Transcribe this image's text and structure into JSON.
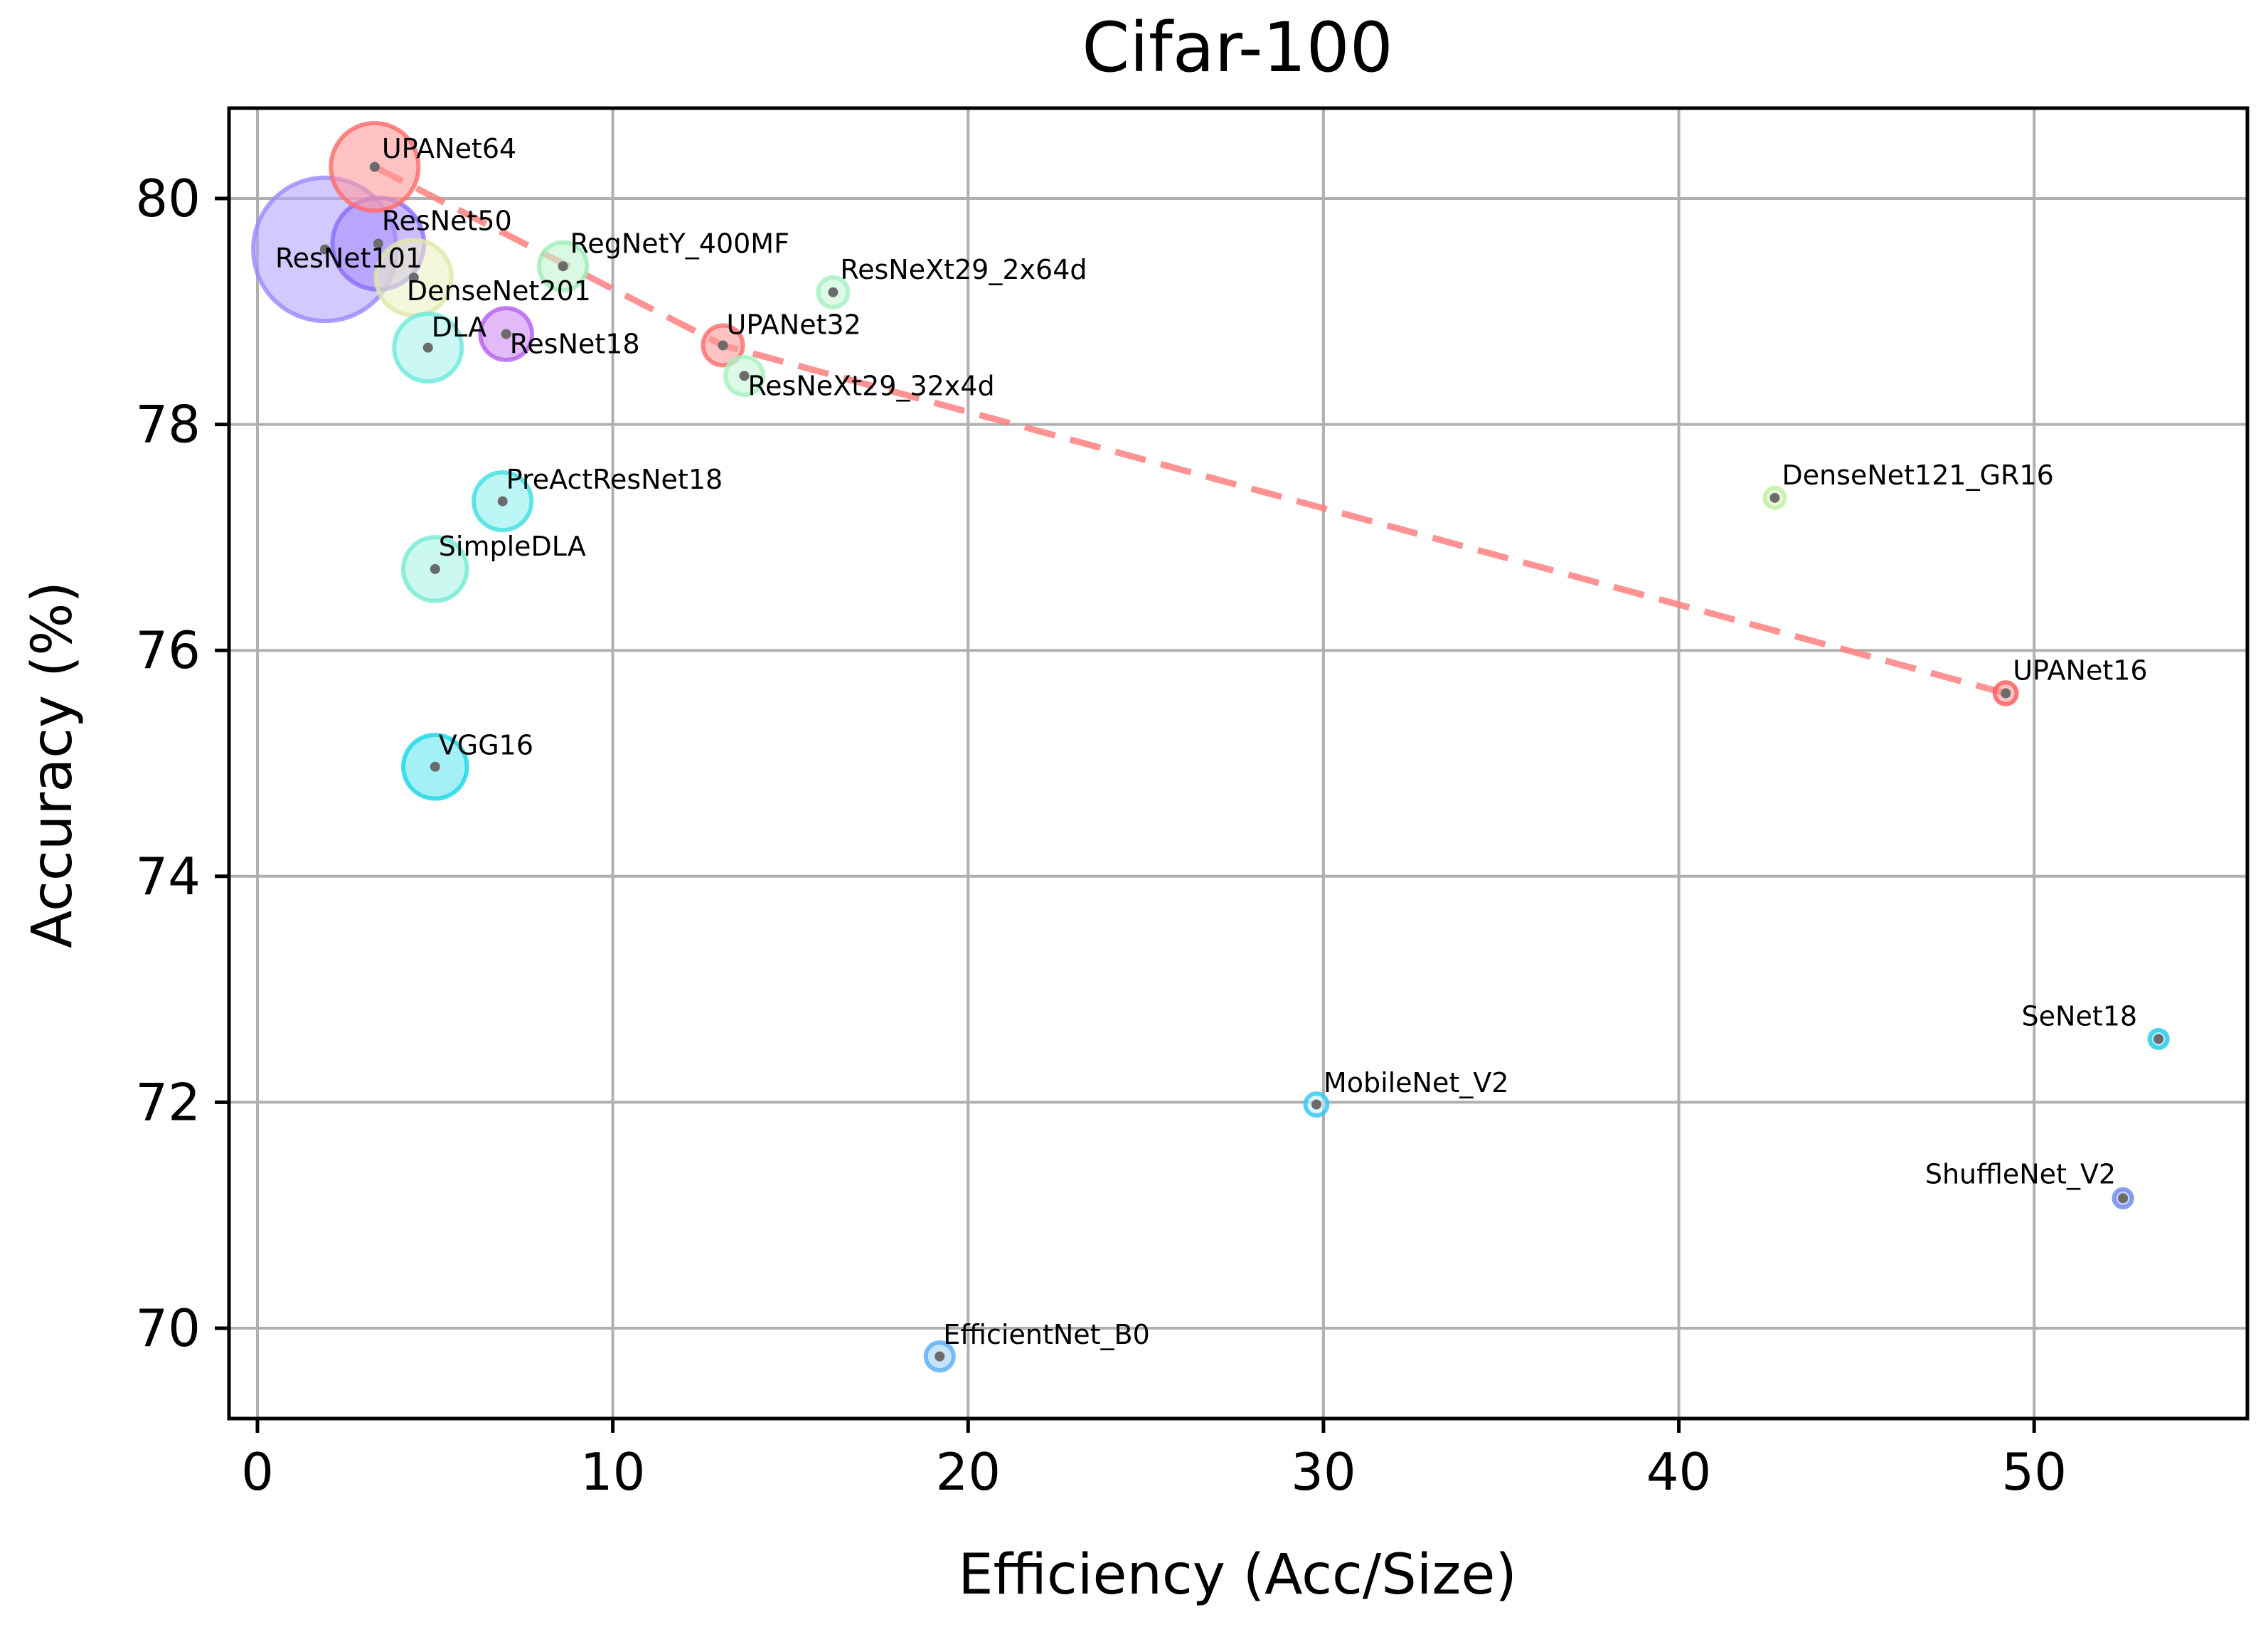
{
  "chart_data": {
    "type": "scatter",
    "title": "Cifar-100",
    "xlabel": "Efficiency (Acc/Size)",
    "ylabel": "Accuracy (%)",
    "xlim": [
      -0.8,
      56
    ],
    "ylim": [
      69.2,
      80.8
    ],
    "xticks": [
      0,
      10,
      20,
      30,
      40,
      50
    ],
    "yticks": [
      70,
      72,
      74,
      76,
      78,
      80
    ],
    "grid": true,
    "points": [
      {
        "name": "UPANet64",
        "x": 3.3,
        "y": 80.28,
        "size": 2.2,
        "color": "#ff9a9a",
        "edge": "#ff6a6a"
      },
      {
        "name": "ResNet101",
        "x": 1.9,
        "y": 79.55,
        "size": 3.6,
        "color": "#b4a6ff",
        "edge": "#9a88ff"
      },
      {
        "name": "ResNet50",
        "x": 3.4,
        "y": 79.6,
        "size": 2.3,
        "color": "#a98eff",
        "edge": "#8c6cff"
      },
      {
        "name": "DenseNet201",
        "x": 4.4,
        "y": 79.3,
        "size": 1.9,
        "color": "#eef2c6",
        "edge": "#dfe7a8"
      },
      {
        "name": "RegNetY_400MF",
        "x": 8.6,
        "y": 79.4,
        "size": 1.2,
        "color": "#bff5cf",
        "edge": "#9eeeb6"
      },
      {
        "name": "ResNeXt29_2x64d",
        "x": 16.2,
        "y": 79.17,
        "size": 0.75,
        "color": "#c4f6d3",
        "edge": "#a5f0c0"
      },
      {
        "name": "DLA",
        "x": 4.8,
        "y": 78.68,
        "size": 1.7,
        "color": "#a9f3ec",
        "edge": "#6ee8dc"
      },
      {
        "name": "ResNet18",
        "x": 7.0,
        "y": 78.8,
        "size": 1.3,
        "color": "#cf8cf2",
        "edge": "#b85ef0"
      },
      {
        "name": "UPANet32",
        "x": 13.1,
        "y": 78.7,
        "size": 1.0,
        "color": "#ff9a9a",
        "edge": "#ff6a6a"
      },
      {
        "name": "ResNeXt29_32x4d",
        "x": 13.7,
        "y": 78.43,
        "size": 0.95,
        "color": "#c6f7d5",
        "edge": "#a6f0bf"
      },
      {
        "name": "PreActResNet18",
        "x": 6.9,
        "y": 77.32,
        "size": 1.45,
        "color": "#91f0ec",
        "edge": "#3fdfe2"
      },
      {
        "name": "SimpleDLA",
        "x": 5.0,
        "y": 76.72,
        "size": 1.6,
        "color": "#a9f5e4",
        "edge": "#72ebd2"
      },
      {
        "name": "VGG16",
        "x": 5.0,
        "y": 74.97,
        "size": 1.6,
        "color": "#66e8f0",
        "edge": "#18d6e6"
      },
      {
        "name": "DenseNet121_GR16",
        "x": 42.7,
        "y": 77.35,
        "size": 0.5,
        "color": "#d9f7c3",
        "edge": "#bdf09e"
      },
      {
        "name": "UPANet16",
        "x": 49.2,
        "y": 75.62,
        "size": 0.55,
        "color": "#ff9a9a",
        "edge": "#ff5a5a"
      },
      {
        "name": "SeNet18",
        "x": 53.5,
        "y": 72.56,
        "size": 0.45,
        "color": "#6fe0f2",
        "edge": "#20c9e6"
      },
      {
        "name": "MobileNet_V2",
        "x": 29.8,
        "y": 71.98,
        "size": 0.55,
        "color": "#c7f4ff",
        "edge": "#2fc6f2"
      },
      {
        "name": "ShuffleNet_V2",
        "x": 52.5,
        "y": 71.15,
        "size": 0.45,
        "color": "#9fb3f4",
        "edge": "#6b87ec"
      },
      {
        "name": "EfficientNet_B0",
        "x": 19.2,
        "y": 69.75,
        "size": 0.7,
        "color": "#9fd1ff",
        "edge": "#5aaef5"
      }
    ],
    "labels": [
      {
        "name": "UPANet64",
        "x": 3.5,
        "y": 80.36,
        "anchor": "start"
      },
      {
        "name": "ResNet50",
        "x": 3.5,
        "y": 79.72,
        "anchor": "start"
      },
      {
        "name": "ResNet101",
        "x": 0.5,
        "y": 79.39,
        "anchor": "start"
      },
      {
        "name": "RegNetY_400MF",
        "x": 8.8,
        "y": 79.52,
        "anchor": "start"
      },
      {
        "name": "ResNeXt29_2x64d",
        "x": 16.4,
        "y": 79.29,
        "anchor": "start"
      },
      {
        "name": "DenseNet201",
        "x": 4.2,
        "y": 79.1,
        "anchor": "start"
      },
      {
        "name": "DLA",
        "x": 4.9,
        "y": 78.78,
        "anchor": "start"
      },
      {
        "name": "UPANet32",
        "x": 13.2,
        "y": 78.8,
        "anchor": "start"
      },
      {
        "name": "ResNet18",
        "x": 7.1,
        "y": 78.63,
        "anchor": "start"
      },
      {
        "name": "ResNeXt29_32x4d",
        "x": 13.8,
        "y": 78.26,
        "anchor": "start"
      },
      {
        "name": "PreActResNet18",
        "x": 7.0,
        "y": 77.43,
        "anchor": "start"
      },
      {
        "name": "SimpleDLA",
        "x": 5.1,
        "y": 76.84,
        "anchor": "start"
      },
      {
        "name": "VGG16",
        "x": 5.1,
        "y": 75.08,
        "anchor": "start"
      },
      {
        "name": "DenseNet121_GR16",
        "x": 42.9,
        "y": 77.47,
        "anchor": "start"
      },
      {
        "name": "UPANet16",
        "x": 49.4,
        "y": 75.74,
        "anchor": "start"
      },
      {
        "name": "SeNet18",
        "x": 52.9,
        "y": 72.68,
        "anchor": "end"
      },
      {
        "name": "MobileNet_V2",
        "x": 30.0,
        "y": 72.09,
        "anchor": "start"
      },
      {
        "name": "ShuffleNet_V2",
        "x": 52.3,
        "y": 71.28,
        "anchor": "end"
      },
      {
        "name": "EfficientNet_B0",
        "x": 19.3,
        "y": 69.86,
        "anchor": "start"
      }
    ],
    "trend_line": {
      "style": "dashed",
      "color": "#ff8080",
      "points": [
        {
          "x": 3.3,
          "y": 80.28
        },
        {
          "x": 13.1,
          "y": 78.7
        },
        {
          "x": 49.2,
          "y": 75.62
        }
      ]
    }
  }
}
